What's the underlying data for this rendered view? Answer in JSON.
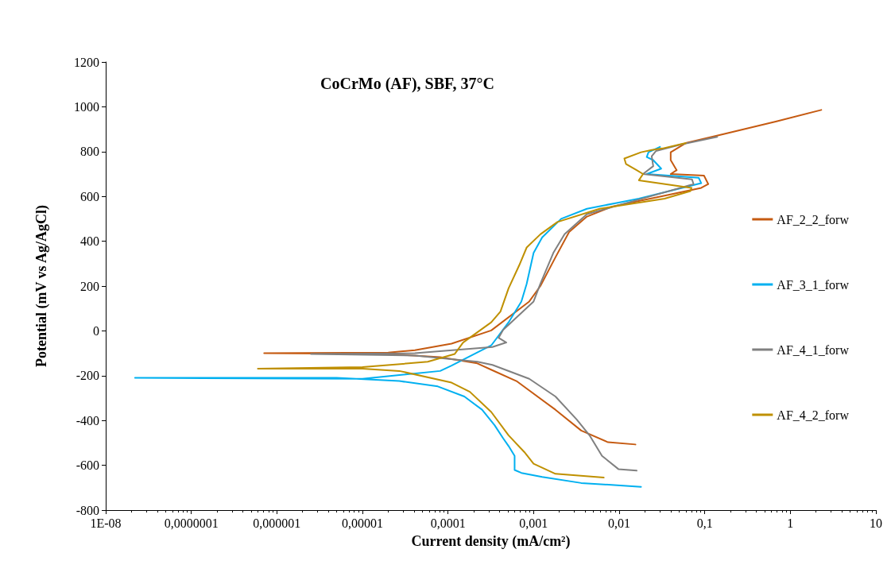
{
  "chart_data": {
    "type": "line",
    "title": "CoCrMo (AF), SBF, 37°C",
    "xlabel": "Current density (mA/cm²)",
    "ylabel": "Potential (mV vs Ag/AgCl)",
    "log": "x",
    "xlim": [
      1e-08,
      10
    ],
    "ylim": [
      -800,
      1200
    ],
    "xticks": [
      {
        "value": 1e-08,
        "label": "1E-08"
      },
      {
        "value": 1e-07,
        "label": "0,0000001"
      },
      {
        "value": 1e-06,
        "label": "0,000001"
      },
      {
        "value": 1e-05,
        "label": "0,00001"
      },
      {
        "value": 0.0001,
        "label": "0,0001"
      },
      {
        "value": 0.001,
        "label": "0,001"
      },
      {
        "value": 0.01,
        "label": "0,01"
      },
      {
        "value": 0.1,
        "label": "0,1"
      },
      1,
      10
    ],
    "yticks": [
      -800,
      -600,
      -400,
      -200,
      0,
      200,
      400,
      600,
      800,
      1000,
      1200
    ],
    "grid": false,
    "legend": "right",
    "marker": "none",
    "line_style": "solid",
    "series": [
      {
        "name": "AF_2_2_forw",
        "color": "#c55a11",
        "x": [
          0.0155,
          0.0074,
          0.0036,
          0.0018,
          0.00063,
          0.00033,
          0.00022,
          8.1e-05,
          2e-05,
          7.1e-07,
          2e-05,
          4.1e-05,
          0.00011,
          0.00032,
          0.00089,
          0.0012,
          0.0018,
          0.0026,
          0.0042,
          0.0083,
          0.034,
          0.091,
          0.11,
          0.098,
          0.04,
          0.047,
          0.04,
          0.04,
          0.06,
          0.17,
          0.69,
          2.3
        ],
        "values": [
          -507,
          -497,
          -445,
          -352,
          -224,
          -176,
          -145,
          -117,
          -103,
          -100,
          -97,
          -86,
          -57,
          2,
          131,
          200,
          328,
          441,
          510,
          555,
          603,
          638,
          655,
          693,
          700,
          717,
          762,
          797,
          838,
          879,
          935,
          986
        ]
      },
      {
        "name": "AF_3_1_forw",
        "color": "#00b0f0",
        "x": [
          0.018,
          0.0036,
          0.00126,
          0.00072,
          0.0006,
          0.0006,
          0.00051,
          0.00044,
          0.00035,
          0.00025,
          0.000155,
          7.6e-05,
          2.7e-05,
          5e-06,
          2.2e-08,
          1e-05,
          8.1e-05,
          0.00011,
          0.00032,
          0.00051,
          0.00072,
          0.00083,
          0.001,
          0.00126,
          0.0021,
          0.0042,
          0.017,
          0.091,
          0.085,
          0.021,
          0.031,
          0.025,
          0.021,
          0.022,
          0.03
        ],
        "values": [
          -696,
          -679,
          -652,
          -634,
          -621,
          -558,
          -514,
          -479,
          -421,
          -352,
          -293,
          -248,
          -224,
          -210,
          -210,
          -214,
          -179,
          -155,
          -65,
          38,
          131,
          210,
          348,
          417,
          500,
          545,
          590,
          659,
          683,
          700,
          724,
          762,
          776,
          797,
          821
        ]
      },
      {
        "name": "AF_4_1_forw",
        "color": "#808080",
        "x": [
          0.016,
          0.0098,
          0.0063,
          0.0045,
          0.0032,
          0.0018,
          0.00089,
          0.00033,
          0.00022,
          4.1e-05,
          2.5e-06,
          4.1e-05,
          0.00033,
          0.00048,
          0.00039,
          0.00044,
          0.001,
          0.0012,
          0.0017,
          0.0023,
          0.0042,
          0.017,
          0.074,
          0.071,
          0.019,
          0.025,
          0.024,
          0.027,
          0.052,
          0.14
        ],
        "values": [
          -624,
          -617,
          -558,
          -466,
          -396,
          -293,
          -214,
          -152,
          -138,
          -110,
          -103,
          -100,
          -72,
          -52,
          -31,
          4,
          131,
          210,
          348,
          431,
          521,
          586,
          655,
          676,
          700,
          735,
          779,
          803,
          831,
          866
        ]
      },
      {
        "name": "AF_4_2_forw",
        "color": "#bf9000",
        "x": [
          0.0066,
          0.0018,
          0.001,
          0.00078,
          0.00051,
          0.00032,
          0.00018,
          0.00011,
          2.7e-05,
          1e-05,
          6e-07,
          1e-05,
          5.8e-05,
          0.00012,
          0.00015,
          0.00032,
          0.00041,
          0.00051,
          0.00068,
          0.00083,
          0.0012,
          0.0019,
          0.0059,
          0.034,
          0.068,
          0.07,
          0.017,
          0.019,
          0.016,
          0.012,
          0.0115,
          0.018,
          0.024,
          0.032,
          0.06
        ],
        "values": [
          -655,
          -638,
          -593,
          -541,
          -466,
          -362,
          -272,
          -231,
          -179,
          -169,
          -169,
          -162,
          -138,
          -103,
          -52,
          38,
          86,
          190,
          293,
          372,
          431,
          486,
          545,
          590,
          624,
          638,
          672,
          700,
          717,
          745,
          769,
          797,
          807,
          814,
          838
        ]
      }
    ]
  }
}
